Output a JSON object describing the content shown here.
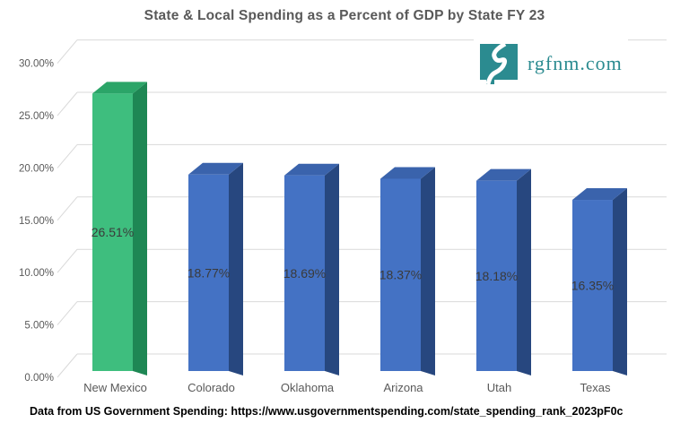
{
  "title": "State & Local Spending as a Percent of GDP by State FY 23",
  "logo": {
    "text": "rgfnm.com",
    "teal": "#2b8b90"
  },
  "footer": "Data from US Government Spending: https://www.usgovernmentspending.com/state_spending_rank_2023pF0c",
  "chart_data": {
    "type": "bar",
    "style": "3d",
    "title": "State & Local Spending as a Percent of GDP by State FY 23",
    "categories": [
      "New Mexico",
      "Colorado",
      "Oklahoma",
      "Arizona",
      "Utah",
      "Texas"
    ],
    "values": [
      26.51,
      18.77,
      18.69,
      18.37,
      18.18,
      16.35
    ],
    "data_labels": [
      "26.51%",
      "18.77%",
      "18.69%",
      "18.37%",
      "18.18%",
      "16.35%"
    ],
    "xlabel": "",
    "ylabel": "",
    "ylim": [
      0,
      30
    ],
    "ytick_values": [
      0,
      5,
      10,
      15,
      20,
      25,
      30
    ],
    "ytick_labels": [
      "0.00%",
      "5.00%",
      "10.00%",
      "15.00%",
      "20.00%",
      "25.00%",
      "30.00%"
    ],
    "grid": true,
    "legend": false,
    "highlight_index": 0,
    "palette": {
      "highlight": {
        "front": "#3ebe7e",
        "top": "#2ba568",
        "side": "#1e8754"
      },
      "default": {
        "front": "#4472c4",
        "top": "#3a63ac",
        "side": "#27477f"
      }
    },
    "gridline_color": "#d9d9d9",
    "tick_label_color": "#595959",
    "data_label_color": "#3a3a3a"
  }
}
